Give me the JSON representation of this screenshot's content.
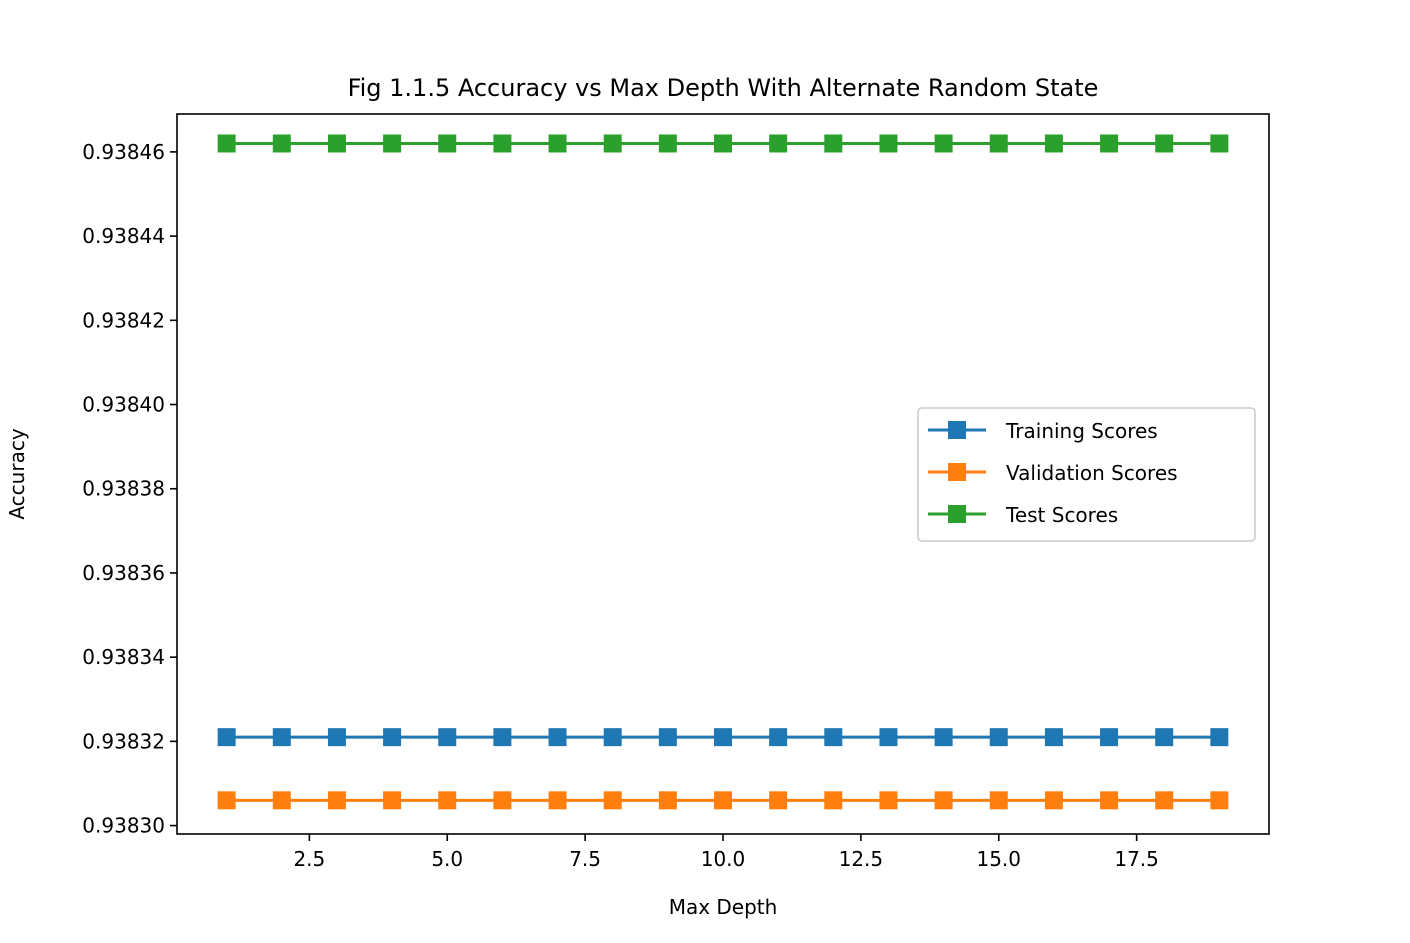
{
  "chart_data": {
    "type": "line",
    "title": "Fig 1.1.5 Accuracy vs Max Depth With Alternate Random State",
    "xlabel": "Max Depth",
    "ylabel": "Accuracy",
    "xlim": [
      0.1,
      19.9
    ],
    "ylim": [
      0.938298,
      0.938469
    ],
    "xticks": [
      2.5,
      5.0,
      7.5,
      10.0,
      12.5,
      15.0,
      17.5
    ],
    "xtick_labels": [
      "2.5",
      "5.0",
      "7.5",
      "10.0",
      "12.5",
      "15.0",
      "17.5"
    ],
    "yticks": [
      0.9383,
      0.93832,
      0.93834,
      0.93836,
      0.93838,
      0.9384,
      0.93842,
      0.93844,
      0.93846
    ],
    "ytick_labels": [
      "0.93830",
      "0.93832",
      "0.93834",
      "0.93836",
      "0.93838",
      "0.93840",
      "0.93842",
      "0.93844",
      "0.93846"
    ],
    "grid": false,
    "legend_position": "center-right",
    "x": [
      1,
      2,
      3,
      4,
      5,
      6,
      7,
      8,
      9,
      10,
      11,
      12,
      13,
      14,
      15,
      16,
      17,
      18,
      19
    ],
    "series": [
      {
        "name": "Training Scores",
        "color": "#1f77b4",
        "marker": "square",
        "values": [
          0.938321,
          0.938321,
          0.938321,
          0.938321,
          0.938321,
          0.938321,
          0.938321,
          0.938321,
          0.938321,
          0.938321,
          0.938321,
          0.938321,
          0.938321,
          0.938321,
          0.938321,
          0.938321,
          0.938321,
          0.938321,
          0.938321
        ]
      },
      {
        "name": "Validation Scores",
        "color": "#ff7f0e",
        "marker": "square",
        "values": [
          0.938306,
          0.938306,
          0.938306,
          0.938306,
          0.938306,
          0.938306,
          0.938306,
          0.938306,
          0.938306,
          0.938306,
          0.938306,
          0.938306,
          0.938306,
          0.938306,
          0.938306,
          0.938306,
          0.938306,
          0.938306,
          0.938306
        ]
      },
      {
        "name": "Test Scores",
        "color": "#2ca02c",
        "marker": "square",
        "values": [
          0.938462,
          0.938462,
          0.938462,
          0.938462,
          0.938462,
          0.938462,
          0.938462,
          0.938462,
          0.938462,
          0.938462,
          0.938462,
          0.938462,
          0.938462,
          0.938462,
          0.938462,
          0.938462,
          0.938462,
          0.938462,
          0.938462
        ]
      }
    ]
  }
}
